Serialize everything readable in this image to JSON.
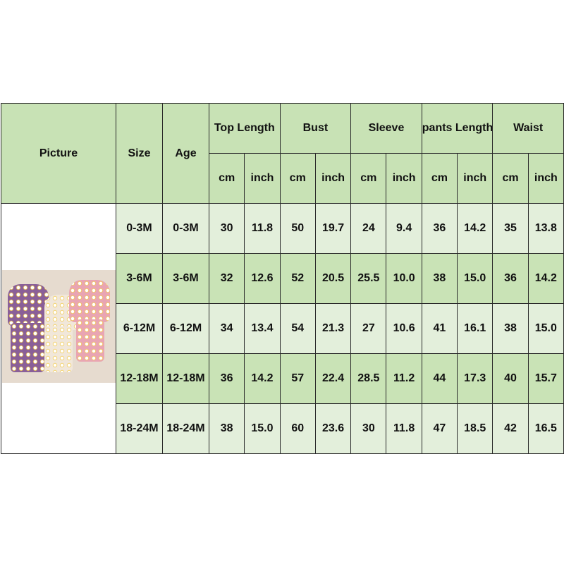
{
  "headers": {
    "picture": "Picture",
    "size": "Size",
    "age": "Age",
    "groups": [
      "Top Length",
      "Bust",
      "Sleeve",
      "pants Length",
      "Waist"
    ],
    "units": [
      "cm",
      "inch",
      "cm",
      "inch",
      "cm",
      "inch",
      "cm",
      "inch",
      "cm",
      "inch"
    ]
  },
  "rows": [
    {
      "size": "0-3M",
      "age": "0-3M",
      "values": [
        "30",
        "11.8",
        "50",
        "19.7",
        "24",
        "9.4",
        "36",
        "14.2",
        "35",
        "13.8"
      ]
    },
    {
      "size": "3-6M",
      "age": "3-6M",
      "values": [
        "32",
        "12.6",
        "52",
        "20.5",
        "25.5",
        "10.0",
        "38",
        "15.0",
        "36",
        "14.2"
      ]
    },
    {
      "size": "6-12M",
      "age": "6-12M",
      "values": [
        "34",
        "13.4",
        "54",
        "21.3",
        "27",
        "10.6",
        "41",
        "16.1",
        "38",
        "15.0"
      ]
    },
    {
      "size": "12-18M",
      "age": "12-18M",
      "values": [
        "36",
        "14.2",
        "57",
        "22.4",
        "28.5",
        "11.2",
        "44",
        "17.3",
        "40",
        "15.7"
      ]
    },
    {
      "size": "18-24M",
      "age": "18-24M",
      "values": [
        "38",
        "15.0",
        "60",
        "23.6",
        "30",
        "11.8",
        "47",
        "18.5",
        "42",
        "16.5"
      ]
    }
  ],
  "colors": {
    "header": "#c8e2b5",
    "row_dark": "#c9e3b6",
    "row_light": "#e3efdb",
    "border": "#2a2a2a"
  }
}
